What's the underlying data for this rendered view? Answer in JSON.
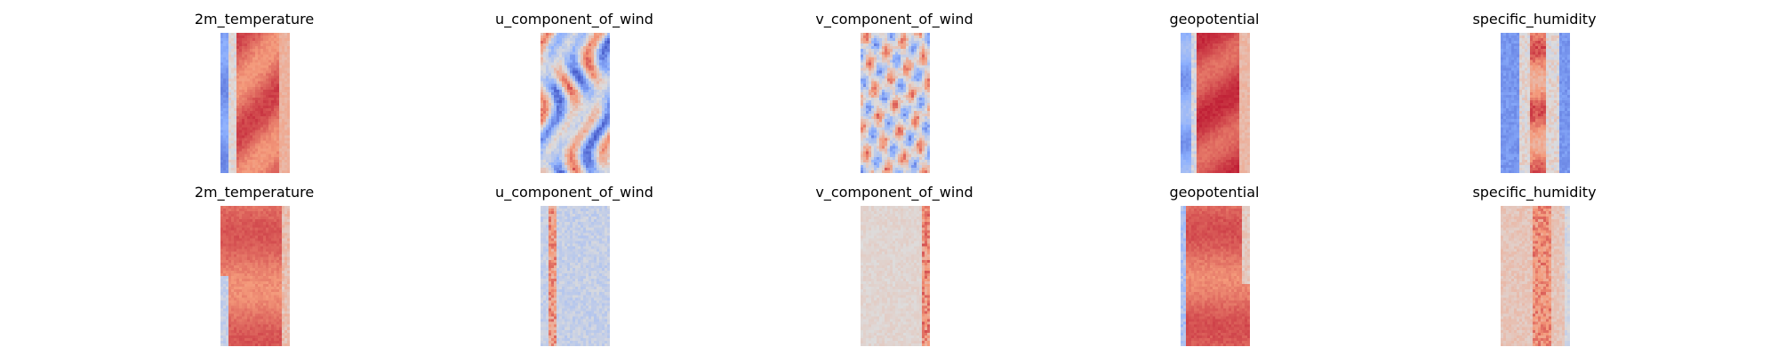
{
  "chart_data": [
    {
      "type": "heatmap",
      "title": "2m_temperature",
      "colormap": "coolwarm",
      "row": "top",
      "field": "2m_temperature"
    },
    {
      "type": "heatmap",
      "title": "u_component_of_wind",
      "colormap": "coolwarm",
      "row": "top",
      "field": "u_component_of_wind"
    },
    {
      "type": "heatmap",
      "title": "v_component_of_wind",
      "colormap": "coolwarm",
      "row": "top",
      "field": "v_component_of_wind"
    },
    {
      "type": "heatmap",
      "title": "geopotential",
      "colormap": "coolwarm",
      "row": "top",
      "field": "geopotential"
    },
    {
      "type": "heatmap",
      "title": "specific_humidity",
      "colormap": "coolwarm",
      "row": "top",
      "field": "specific_humidity"
    },
    {
      "type": "heatmap",
      "title": "2m_temperature",
      "colormap": "coolwarm",
      "row": "bottom",
      "field": "2m_temperature"
    },
    {
      "type": "heatmap",
      "title": "u_component_of_wind",
      "colormap": "coolwarm",
      "row": "bottom",
      "field": "u_component_of_wind"
    },
    {
      "type": "heatmap",
      "title": "v_component_of_wind",
      "colormap": "coolwarm",
      "row": "bottom",
      "field": "v_component_of_wind"
    },
    {
      "type": "heatmap",
      "title": "geopotential",
      "colormap": "coolwarm",
      "row": "bottom",
      "field": "geopotential"
    },
    {
      "type": "heatmap",
      "title": "specific_humidity",
      "colormap": "coolwarm",
      "row": "bottom",
      "field": "specific_humidity"
    }
  ],
  "colors": {
    "cold": "#3b4cc0",
    "neutral": "#dddcdc",
    "warm": "#b40426"
  }
}
